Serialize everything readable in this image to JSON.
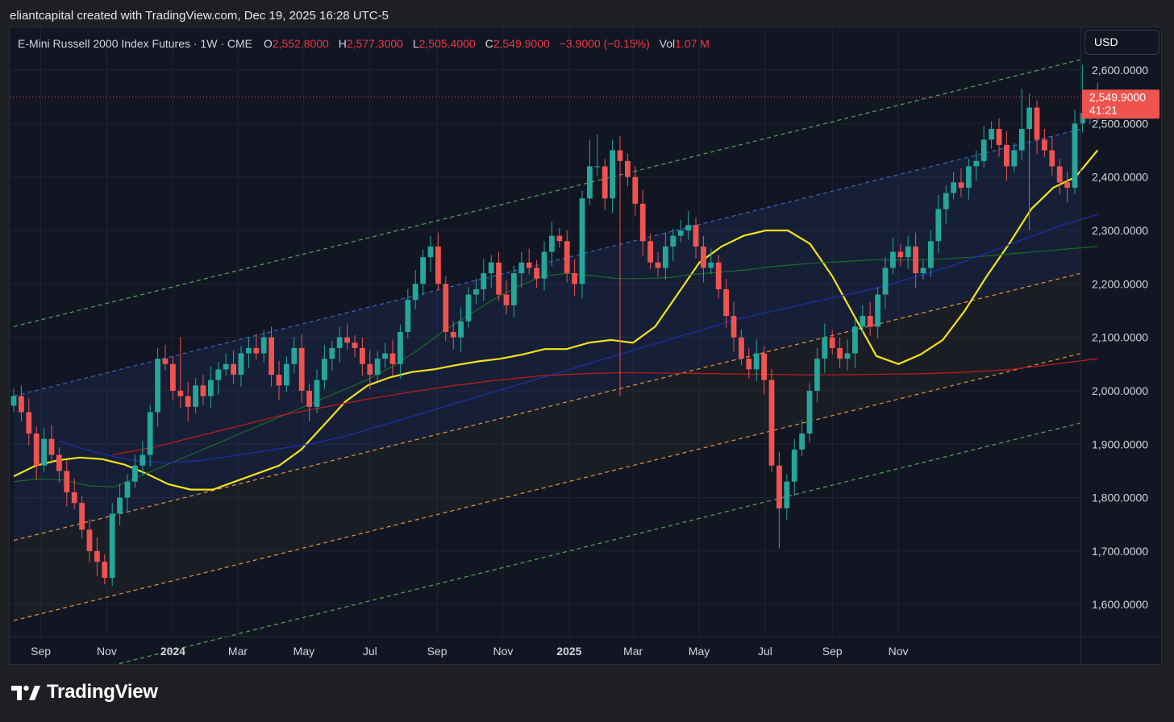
{
  "header": {
    "credit": "eliantcapital created with TradingView.com, Dec 19, 2025 16:28 UTC-5"
  },
  "legend": {
    "symbol": "E-Mini Russell 2000 Index Futures · 1W · CME",
    "o_label": "O",
    "o_value": "2,552.8000",
    "h_label": "H",
    "h_value": "2,577.3000",
    "l_label": "L",
    "l_value": "2,505.4000",
    "c_label": "C",
    "c_value": "2,549.9000",
    "change": "−3.9000 (−0.15%)",
    "vol_label": "Vol",
    "vol_value": "1.07 M"
  },
  "currency_button": "USD",
  "brand": {
    "name": "TradingView"
  },
  "colors": {
    "background": "#121623",
    "up": "#26a69a",
    "down": "#ef5350",
    "ma_yellow": "#f5e21b",
    "ma_green": "#1b6b2a",
    "ma_blue": "#1a2fa8",
    "ma_red": "#b71c1c",
    "channel_blue": "#3d6fd6",
    "channel_orange": "#f7a53a",
    "channel_green": "#5cb85c",
    "price_tag": "#ef5350"
  },
  "chart_data": {
    "type": "candlestick",
    "timeframe": "1W",
    "grid": true,
    "ylim": [
      1540,
      2680
    ],
    "x_ticks": [
      {
        "label": "Sep",
        "date": "2023-09-01",
        "bold": false
      },
      {
        "label": "Nov",
        "date": "2023-11-01",
        "bold": false
      },
      {
        "label": "2024",
        "date": "2024-01-01",
        "bold": true
      },
      {
        "label": "Mar",
        "date": "2024-03-01",
        "bold": false
      },
      {
        "label": "May",
        "date": "2024-05-01",
        "bold": false
      },
      {
        "label": "Jul",
        "date": "2024-07-01",
        "bold": false
      },
      {
        "label": "Sep",
        "date": "2024-09-01",
        "bold": false
      },
      {
        "label": "Nov",
        "date": "2024-11-01",
        "bold": false
      },
      {
        "label": "2025",
        "date": "2025-01-01",
        "bold": true
      },
      {
        "label": "Mar",
        "date": "2025-03-01",
        "bold": false
      },
      {
        "label": "May",
        "date": "2025-05-01",
        "bold": false
      },
      {
        "label": "Jul",
        "date": "2025-07-01",
        "bold": false
      },
      {
        "label": "Sep",
        "date": "2025-09-01",
        "bold": false
      },
      {
        "label": "Nov",
        "date": "2025-11-01",
        "bold": false
      }
    ],
    "y_ticks": [
      "1,600.0000",
      "1,700.0000",
      "1,800.0000",
      "1,900.0000",
      "2,000.0000",
      "2,100.0000",
      "2,200.0000",
      "2,300.0000",
      "2,400.0000",
      "2,500.0000",
      "2,600.0000"
    ],
    "y_tick_values": [
      1600,
      1700,
      1800,
      1900,
      2000,
      2100,
      2200,
      2300,
      2400,
      2500,
      2600
    ],
    "last_price": {
      "value": 2549.9,
      "label": "2,549.9000",
      "countdown": "41:21"
    },
    "candles": {
      "start": "2023-08-07",
      "closes": [
        1990,
        1960,
        1920,
        1860,
        1910,
        1880,
        1850,
        1810,
        1790,
        1740,
        1700,
        1680,
        1650,
        1770,
        1800,
        1830,
        1860,
        1880,
        1960,
        2060,
        2050,
        2000,
        1990,
        1970,
        2010,
        1990,
        2020,
        2040,
        2050,
        2030,
        2070,
        2080,
        2070,
        2100,
        2030,
        2010,
        2050,
        2080,
        2000,
        1970,
        2020,
        2060,
        2080,
        2100,
        2090,
        2080,
        2050,
        2030,
        2060,
        2070,
        2050,
        2110,
        2170,
        2200,
        2250,
        2270,
        2200,
        2110,
        2100,
        2130,
        2180,
        2190,
        2220,
        2240,
        2180,
        2160,
        2220,
        2240,
        2230,
        2210,
        2260,
        2290,
        2280,
        2220,
        2200,
        2360,
        2420,
        2420,
        2360,
        2450,
        2430,
        2400,
        2350,
        2280,
        2240,
        2230,
        2270,
        2290,
        2300,
        2310,
        2270,
        2230,
        2240,
        2190,
        2140,
        2100,
        2060,
        2040,
        2070,
        2020,
        1860,
        1780,
        1830,
        1890,
        1920,
        2000,
        2060,
        2100,
        2080,
        2060,
        2070,
        2120,
        2140,
        2120,
        2180,
        2230,
        2260,
        2250,
        2270,
        2220,
        2230,
        2280,
        2340,
        2370,
        2390,
        2380,
        2420,
        2430,
        2470,
        2490,
        2460,
        2420,
        2450,
        2490,
        2530,
        2470,
        2450,
        2420,
        2390,
        2380,
        2500,
        2520,
        2530,
        2550
      ],
      "wick_top": {
        "22": 2100,
        "72": 2305,
        "76": 2470,
        "77": 2480,
        "133": 2565,
        "141": 2610
      },
      "wick_bottom": {
        "13": 1635,
        "80": 1990,
        "101": 1705,
        "134": 2300
      }
    },
    "moving_averages": [
      {
        "color": "yellow",
        "period": 20,
        "values": [
          1840,
          1860,
          1870,
          1875,
          1872,
          1862,
          1845,
          1825,
          1815,
          1815,
          1830,
          1845,
          1860,
          1890,
          1935,
          1980,
          2010,
          2025,
          2035,
          2040,
          2048,
          2055,
          2060,
          2068,
          2078,
          2078,
          2090,
          2095,
          2090,
          2120,
          2180,
          2240,
          2270,
          2290,
          2300,
          2300,
          2275,
          2215,
          2140,
          2065,
          2050,
          2068,
          2095,
          2150,
          2215,
          2275,
          2340,
          2380,
          2400,
          2450
        ]
      },
      {
        "color": "green",
        "period": 50,
        "values": [
          1830,
          1835,
          1833,
          1822,
          1820,
          1840,
          1860,
          1880,
          1900,
          1920,
          1940,
          1960,
          1980,
          2000,
          2020,
          2045,
          2075,
          2110,
          2140,
          2170,
          2195,
          2215,
          2220,
          2215,
          2210,
          2210,
          2212,
          2218,
          2222,
          2226,
          2232,
          2236,
          2240,
          2242,
          2245,
          2245,
          2245,
          2247,
          2250,
          2254,
          2258,
          2262,
          2266,
          2270
        ]
      },
      {
        "color": "blue",
        "period": 100,
        "values": [
          1905,
          1885,
          1870,
          1865,
          1870,
          1880,
          1890,
          1900,
          1915,
          1935,
          1955,
          1975,
          1995,
          2015,
          2035,
          2055,
          2075,
          2095,
          2115,
          2135,
          2150,
          2165,
          2180,
          2195,
          2215,
          2235,
          2260,
          2285,
          2310,
          2330
        ]
      },
      {
        "color": "red",
        "period": 200,
        "values": [
          1880,
          1895,
          1915,
          1935,
          1955,
          1970,
          1985,
          1998,
          2010,
          2020,
          2028,
          2032,
          2034,
          2033,
          2032,
          2031,
          2030,
          2030,
          2031,
          2032,
          2035,
          2040,
          2050,
          2060
        ]
      }
    ],
    "channel": {
      "slope_per_week": 3.55,
      "start_date": "2023-08-07",
      "lines": [
        {
          "color": "green",
          "offset": 2120
        },
        {
          "color": "blue",
          "offset": 1990
        },
        {
          "color": "orange",
          "offset": 1720
        },
        {
          "color": "orange",
          "offset": 1570
        },
        {
          "color": "green",
          "offset": 1440
        }
      ]
    }
  }
}
